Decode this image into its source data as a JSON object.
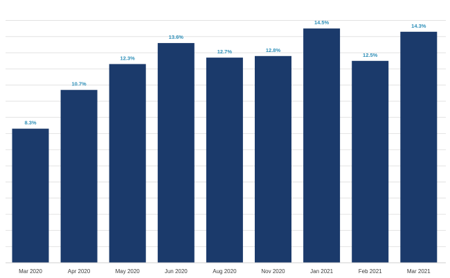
{
  "chart_data": {
    "type": "bar",
    "categories": [
      "Mar 2020",
      "Apr 2020",
      "May 2020",
      "Jun 2020",
      "Aug 2020",
      "Nov 2020",
      "Jan 2021",
      "Feb 2021",
      "Mar 2021"
    ],
    "values": [
      8.3,
      10.7,
      12.3,
      13.6,
      12.7,
      12.8,
      14.5,
      12.5,
      14.3
    ],
    "value_labels": [
      "8.3%",
      "10.7%",
      "12.3%",
      "13.6%",
      "12.7%",
      "12.8%",
      "14.5%",
      "12.5%",
      "14.3%"
    ],
    "title": "",
    "xlabel": "",
    "ylabel": "",
    "ylim": [
      0,
      16
    ],
    "grid": true,
    "bar_color": "#1b3a6b",
    "label_color": "#2e8fb8"
  }
}
